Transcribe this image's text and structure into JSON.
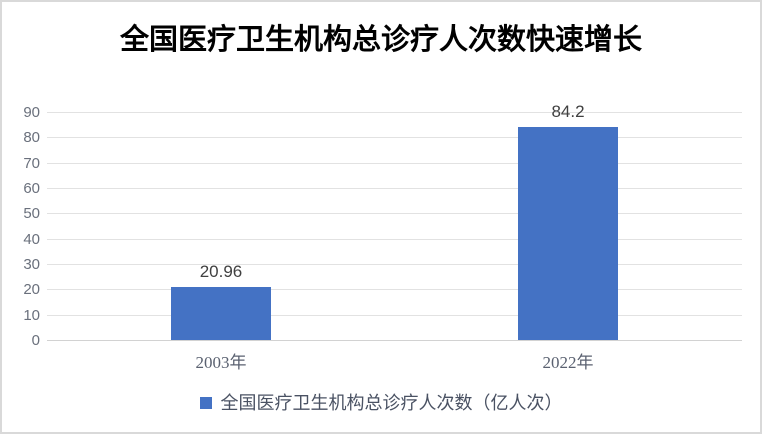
{
  "chart_data": {
    "type": "bar",
    "title": "全国医疗卫生机构总诊疗人次数快速增长",
    "categories": [
      "2003年",
      "2022年"
    ],
    "values": [
      20.96,
      84.2
    ],
    "data_labels": [
      "20.96",
      "84.2"
    ],
    "series": [
      {
        "name": "全国医疗卫生机构总诊疗人次数（亿人次）",
        "values": [
          20.96,
          84.2
        ]
      }
    ],
    "legend": {
      "position": "bottom",
      "label": "全国医疗卫生机构总诊疗人次数（亿人次）"
    },
    "xlabel": "",
    "ylabel": "",
    "ylim": [
      0,
      90
    ],
    "yticks": [
      0,
      10,
      20,
      30,
      40,
      50,
      60,
      70,
      80,
      90
    ],
    "grid": true,
    "colors": {
      "bar": "#4472C4",
      "gridline": "#E2E2E2",
      "axis_line": "#D2D2D2",
      "tick_label": "#6A707C",
      "category_label": "#5A6170",
      "data_label": "#404040",
      "legend_text": "#4A5263",
      "title": "#000000",
      "frame_border": "#D9D9D9",
      "background": "#FFFFFF"
    }
  }
}
